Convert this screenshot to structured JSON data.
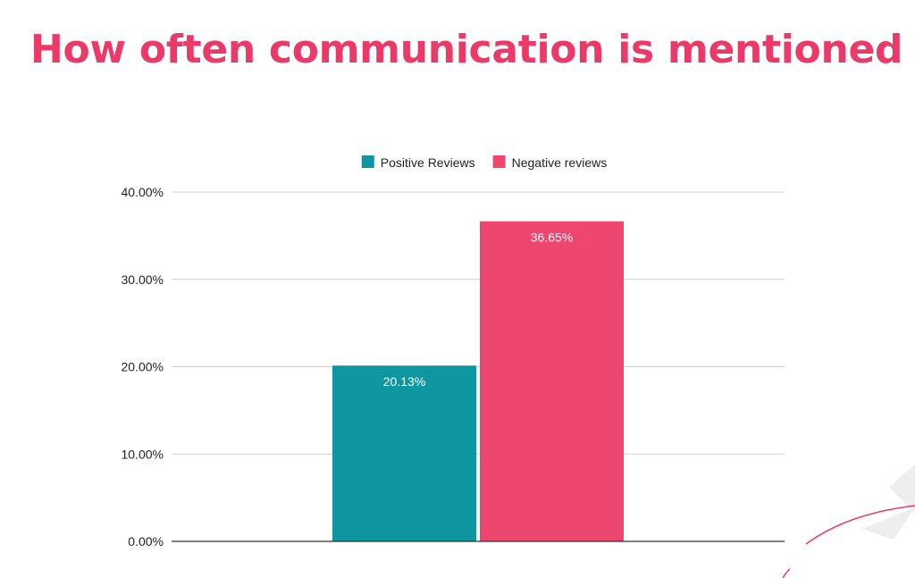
{
  "slide": {
    "title": "How often communication is mentioned",
    "title_color": "#ec3a68"
  },
  "chart_data": {
    "type": "bar",
    "categories": [
      ""
    ],
    "series": [
      {
        "name": "Positive Reviews",
        "values": [
          20.13
        ],
        "color": "#0f97a1",
        "label": "20.13%"
      },
      {
        "name": "Negative reviews",
        "values": [
          36.65
        ],
        "color": "#ee476f",
        "label": "36.65%"
      }
    ],
    "ylim": [
      0,
      40
    ],
    "yticks": [
      {
        "value": 0,
        "label": "0.00%"
      },
      {
        "value": 10,
        "label": "10.00%"
      },
      {
        "value": 20,
        "label": "20.00%"
      },
      {
        "value": 30,
        "label": "30.00%"
      },
      {
        "value": 40,
        "label": "40.00%"
      }
    ],
    "grid": true,
    "legend_position": "top"
  },
  "decoration": {
    "accent_color": "#ec3a68",
    "shape_color": "#eeeeee"
  }
}
